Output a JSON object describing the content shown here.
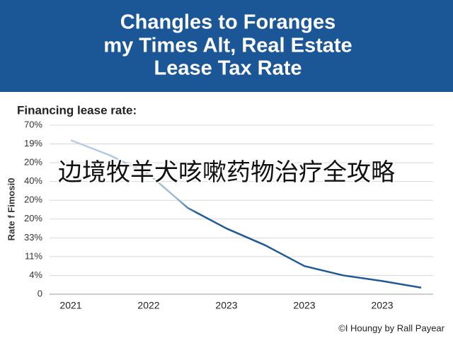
{
  "chart_data": {
    "type": "line",
    "title": [
      "Changles to Foranges",
      "my Times Alt, Real Estate",
      "Lease Tax Rate"
    ],
    "subtitle": "Financing lease rate:",
    "y_label": "Rate f Fimosi0",
    "annotation": "边境牧羊犬咳嗽药物治疗全攻略",
    "footer": "©I Houngy by Rall Payear",
    "categories": [
      "2021",
      null,
      "2022",
      null,
      "2023",
      null,
      "2023",
      null,
      "2023",
      null
    ],
    "series": [
      {
        "name": "Financing lease rate",
        "color": "#1f5a96",
        "values": [
          8.2,
          7.4,
          6.4,
          4.6,
          3.5,
          2.6,
          1.5,
          1.0,
          0.7,
          0.35
        ]
      }
    ],
    "ylim": [
      0,
      9
    ],
    "yticks": [
      0,
      {
        "value": 1,
        "label": "4%"
      },
      {
        "value": 2,
        "label": "11%"
      },
      {
        "value": 3,
        "label": "33%"
      },
      {
        "value": 4,
        "label": "20%"
      },
      {
        "value": 5,
        "label": "20%"
      },
      {
        "value": 6,
        "label": "40%"
      },
      {
        "value": 7,
        "label": "20%"
      },
      {
        "value": 8,
        "label": "19%"
      },
      {
        "value": 9,
        "label": "70%"
      }
    ],
    "grid": true
  }
}
